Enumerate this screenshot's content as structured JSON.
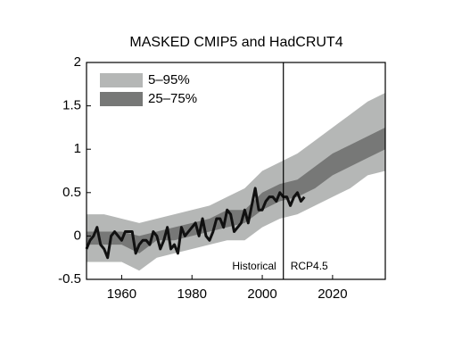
{
  "chart_data": {
    "type": "band",
    "title": "MASKED CMIP5 and HadCRUT4",
    "x": [
      1950,
      1955,
      1960,
      1965,
      1970,
      1975,
      1980,
      1985,
      1990,
      1995,
      2000,
      2005,
      2010,
      2015,
      2020,
      2025,
      2030,
      2035
    ],
    "series": [
      {
        "name": "5–95%",
        "color": "#b5b7b6",
        "lower": [
          -0.3,
          -0.3,
          -0.3,
          -0.4,
          -0.25,
          -0.2,
          -0.15,
          -0.1,
          -0.05,
          -0.05,
          0.1,
          0.2,
          0.25,
          0.35,
          0.45,
          0.55,
          0.7,
          0.75
        ],
        "upper": [
          0.25,
          0.25,
          0.2,
          0.15,
          0.2,
          0.25,
          0.3,
          0.35,
          0.45,
          0.55,
          0.75,
          0.85,
          0.95,
          1.1,
          1.25,
          1.4,
          1.55,
          1.65
        ]
      },
      {
        "name": "25–75%",
        "color": "#777877",
        "lower": [
          -0.1,
          -0.1,
          -0.1,
          -0.2,
          -0.05,
          -0.05,
          0.0,
          0.05,
          0.1,
          0.15,
          0.3,
          0.4,
          0.45,
          0.55,
          0.7,
          0.8,
          0.9,
          1.0
        ],
        "upper": [
          0.05,
          0.05,
          0.05,
          0.0,
          0.05,
          0.1,
          0.15,
          0.2,
          0.3,
          0.3,
          0.5,
          0.6,
          0.65,
          0.8,
          0.95,
          1.05,
          1.15,
          1.25
        ]
      }
    ],
    "observed": {
      "color": "#111111",
      "x": [
        1950,
        1951,
        1952,
        1953,
        1954,
        1955,
        1956,
        1957,
        1958,
        1959,
        1960,
        1961,
        1962,
        1963,
        1964,
        1965,
        1966,
        1967,
        1968,
        1969,
        1970,
        1971,
        1972,
        1973,
        1974,
        1975,
        1976,
        1977,
        1978,
        1979,
        1980,
        1981,
        1982,
        1983,
        1984,
        1985,
        1986,
        1987,
        1988,
        1989,
        1990,
        1991,
        1992,
        1993,
        1994,
        1995,
        1996,
        1997,
        1998,
        1999,
        2000,
        2001,
        2002,
        2003,
        2004,
        2005,
        2006,
        2007,
        2008,
        2009,
        2010,
        2011,
        2012
      ],
      "values": [
        -0.15,
        -0.05,
        0.0,
        0.1,
        -0.1,
        -0.15,
        -0.25,
        0.0,
        0.05,
        0.0,
        -0.05,
        0.05,
        0.05,
        0.05,
        -0.2,
        -0.1,
        -0.05,
        -0.05,
        -0.1,
        0.05,
        0.0,
        -0.15,
        -0.05,
        0.1,
        -0.15,
        -0.1,
        -0.2,
        0.1,
        0.0,
        0.05,
        0.1,
        0.15,
        0.0,
        0.2,
        0.0,
        -0.05,
        0.05,
        0.2,
        0.2,
        0.1,
        0.3,
        0.25,
        0.05,
        0.1,
        0.15,
        0.3,
        0.15,
        0.35,
        0.55,
        0.3,
        0.3,
        0.4,
        0.45,
        0.45,
        0.4,
        0.5,
        0.45,
        0.45,
        0.35,
        0.45,
        0.5,
        0.4,
        0.45
      ]
    },
    "divider_x": 2006,
    "annotations": [
      "Historical",
      "RCP4.5"
    ],
    "xlim": [
      1950,
      2035
    ],
    "xticks": [
      1960,
      1980,
      2000,
      2020
    ],
    "ylim": [
      -0.5,
      2
    ],
    "yticks": [
      -0.5,
      0,
      0.5,
      1,
      1.5,
      2
    ],
    "legend": "upper left",
    "grid": false
  }
}
